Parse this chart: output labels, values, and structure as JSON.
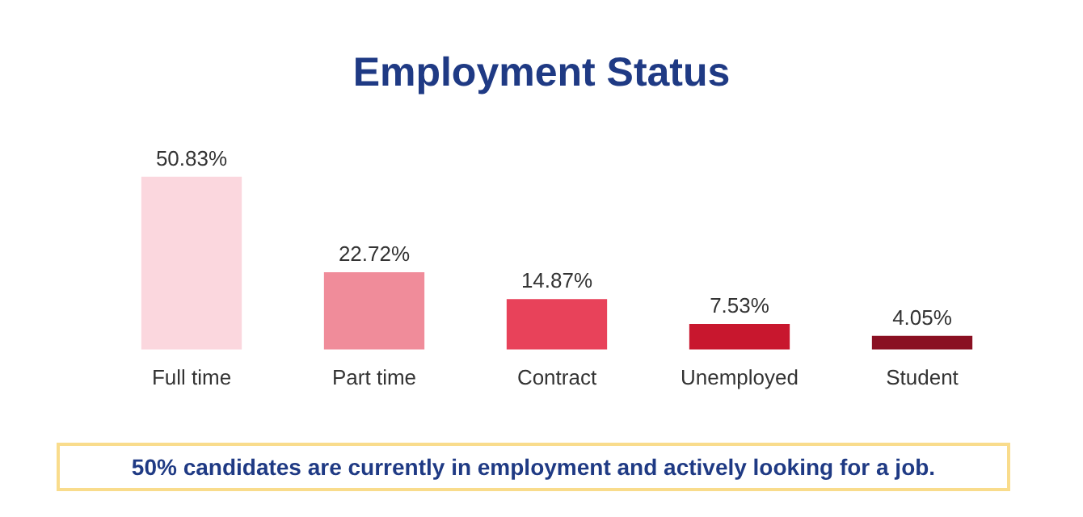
{
  "chart_data": {
    "type": "bar",
    "title": "Employment Status",
    "categories": [
      "Full time",
      "Part time",
      "Contract",
      "Unemployed",
      "Student"
    ],
    "values": [
      50.83,
      22.72,
      14.87,
      7.53,
      4.05
    ],
    "colors": [
      "#fbd7de",
      "#f08c9a",
      "#e8425a",
      "#c8172e",
      "#8a1022"
    ],
    "value_labels": [
      "50.83%",
      "22.72%",
      "14.87%",
      "7.53%",
      "4.05%"
    ],
    "tick_labels": "x",
    "grid": false,
    "legend": false,
    "annotations": [
      "50% candidates are currently in employment and actively looking for a job."
    ]
  }
}
